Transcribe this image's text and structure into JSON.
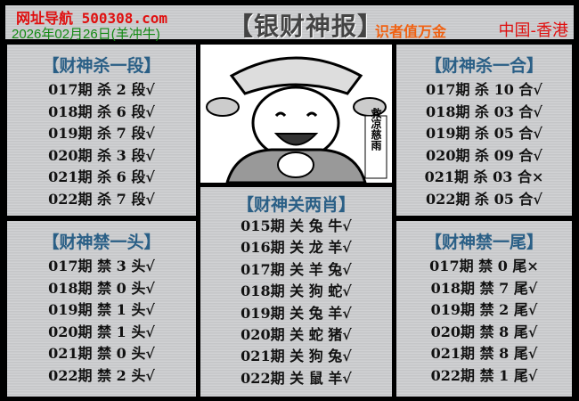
{
  "header": {
    "site": "网址导航 500308.com",
    "date": "2026年02月26日(羊冲牛)",
    "title": "【银财神报】",
    "slogan": "识者值万金",
    "region": "中国-香港"
  },
  "image": {
    "caption": "救凉慈雨"
  },
  "panels": {
    "p1": {
      "title": "【财神杀一段】",
      "rows": [
        "017期 杀 2 段√",
        "018期 杀 6 段√",
        "019期 杀 7 段√",
        "020期 杀 3 段√",
        "021期 杀 6 段√",
        "022期 杀 7 段√"
      ]
    },
    "p2": {
      "title": "【财神禁一头】",
      "rows": [
        "017期 禁 3 头√",
        "018期 禁 0 头√",
        "019期 禁 1 头√",
        "020期 禁 1 头√",
        "021期 禁 0 头√",
        "022期 禁 2 头√"
      ]
    },
    "p3": {
      "title": "【财神杀一合】",
      "rows": [
        "017期 杀 10 合√",
        "018期 杀 03 合√",
        "019期 杀 05 合√",
        "020期 杀 09 合√",
        "021期 杀 03 合×",
        "022期 杀 05 合√"
      ]
    },
    "p4": {
      "title": "【财神禁一尾】",
      "rows": [
        "017期 禁 0 尾×",
        "018期 禁 7 尾√",
        "019期 禁 2 尾√",
        "020期 禁 8 尾√",
        "021期 禁 8 尾√",
        "022期 禁 1 尾√"
      ]
    },
    "p5": {
      "title": "【财神关两肖】",
      "rows": [
        "015期 关 兔 牛√",
        "016期 关 龙 羊√",
        "017期 关 羊 兔√",
        "018期 关 狗 蛇√",
        "019期 关 兔 羊√",
        "020期 关 蛇 猪√",
        "021期 关 狗 兔√",
        "022期 关 鼠 羊√"
      ]
    }
  }
}
